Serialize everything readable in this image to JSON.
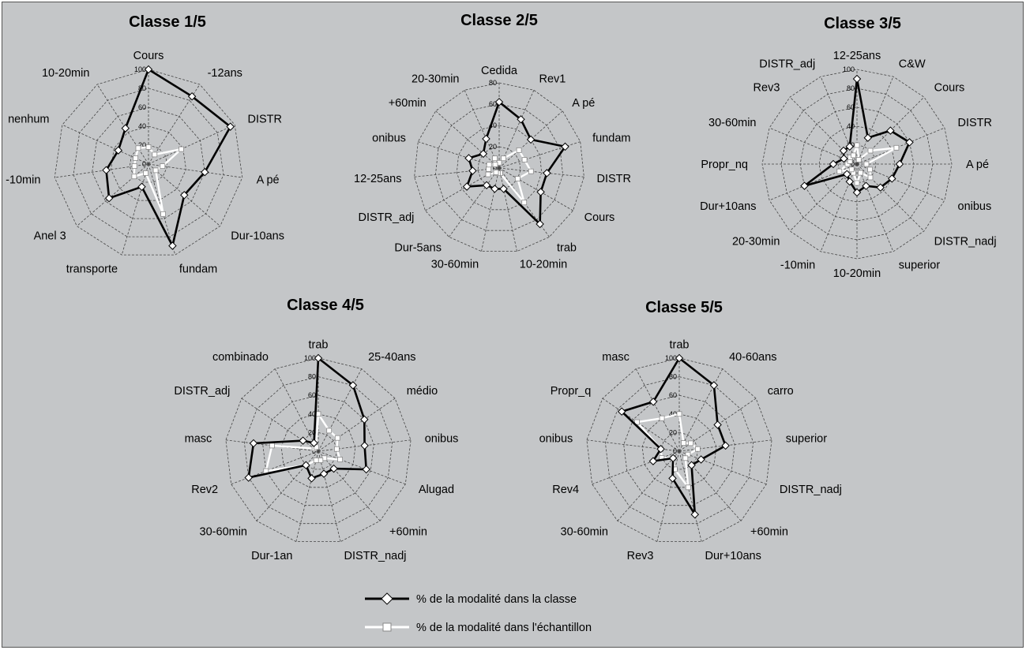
{
  "colors": {
    "background": "#c4c6c8",
    "class_series": "#000000",
    "sample_series": "#ffffff",
    "grid": "#444444"
  },
  "legend": {
    "class_label": "% de la modalité dans la classe",
    "sample_label": "% de la modalité dans l'échantillon"
  },
  "chart_data": [
    {
      "type": "radar",
      "title": "Classe 1/5",
      "ticks": [
        "0",
        "20",
        "40",
        "60",
        "80",
        "100"
      ],
      "rlim": [
        0,
        100
      ],
      "axes": [
        "Cours",
        "-12ans",
        "DISTR",
        "A pé",
        "Dur-10ans",
        "fundam",
        "transporte",
        "Anel 3",
        "-10min",
        "nenhum",
        "10-20min"
      ],
      "series": [
        {
          "name": "% de la modalité dans la classe",
          "values": [
            100,
            85,
            95,
            60,
            50,
            90,
            25,
            55,
            45,
            35,
            45
          ]
        },
        {
          "name": "% de la modalité dans l'échantillon",
          "values": [
            18,
            12,
            38,
            15,
            10,
            55,
            10,
            20,
            15,
            15,
            20
          ]
        }
      ]
    },
    {
      "type": "radar",
      "title": "Classe 2/5",
      "ticks": [
        "0",
        "20",
        "40",
        "60",
        "80"
      ],
      "rlim": [
        0,
        80
      ],
      "axes": [
        "Cedida",
        "Rev1",
        "A pé",
        "fundam",
        "DISTR",
        "Cours",
        "trab",
        "10-20min",
        "30-60min",
        "Dur-5ans",
        "DISTR_adj",
        "12-25ans",
        "onibus",
        "+60min",
        "20-30min"
      ],
      "series": [
        {
          "name": "% de la modalité dans la classe",
          "values": [
            62,
            50,
            40,
            65,
            45,
            45,
            65,
            20,
            20,
            20,
            35,
            25,
            30,
            20,
            30
          ]
        },
        {
          "name": "% de la modalité dans l'échantillon",
          "values": [
            5,
            10,
            25,
            25,
            30,
            20,
            40,
            5,
            5,
            5,
            12,
            10,
            10,
            5,
            10
          ]
        }
      ]
    },
    {
      "type": "radar",
      "title": "Classe 3/5",
      "ticks": [
        "0",
        "20",
        "40",
        "60",
        "80",
        "100"
      ],
      "rlim": [
        0,
        100
      ],
      "axes": [
        "12-25ans",
        "C&W",
        "Cours",
        "DISTR",
        "A pé",
        "onibus",
        "DISTR_nadj",
        "superior",
        "10-20min",
        "-10min",
        "20-30min",
        "Dur+10ans",
        "Propr_nq",
        "30-60min",
        "Rev3",
        "DISTR_adj"
      ],
      "series": [
        {
          "name": "% de la modalité dans la classe",
          "values": [
            90,
            30,
            50,
            60,
            45,
            40,
            35,
            25,
            30,
            20,
            15,
            60,
            25,
            15,
            20,
            20
          ]
        },
        {
          "name": "% de la modalité dans l'échantillon",
          "values": [
            20,
            5,
            20,
            45,
            10,
            15,
            20,
            10,
            20,
            10,
            8,
            20,
            10,
            8,
            10,
            10
          ]
        }
      ]
    },
    {
      "type": "radar",
      "title": "Classe 4/5",
      "ticks": [
        "0",
        "20",
        "40",
        "60",
        "80",
        "100"
      ],
      "rlim": [
        0,
        100
      ],
      "axes": [
        "trab",
        "25-40ans",
        "médio",
        "onibus",
        "Alugad",
        "+60min",
        "DISTR_nadj",
        "Dur-1an",
        "30-60min",
        "Rev2",
        "masc",
        "DISTR_adj",
        "combinado"
      ],
      "series": [
        {
          "name": "% de la modalité dans la classe",
          "values": [
            100,
            80,
            60,
            50,
            55,
            25,
            25,
            30,
            20,
            80,
            70,
            20,
            10
          ]
        },
        {
          "name": "% de la modalité dans l'échantillon",
          "values": [
            40,
            25,
            25,
            20,
            25,
            10,
            10,
            10,
            20,
            60,
            50,
            5,
            5
          ]
        }
      ]
    },
    {
      "type": "radar",
      "title": "Classe 5/5",
      "ticks": [
        "0",
        "20",
        "40",
        "60",
        "80",
        "100"
      ],
      "rlim": [
        0,
        100
      ],
      "axes": [
        "trab",
        "40-60ans",
        "carro",
        "superior",
        "DISTR_nadj",
        "+60min",
        "Dur+10ans",
        "Rev3",
        "30-60min",
        "Rev4",
        "onibus",
        "Propr_q",
        "masc"
      ],
      "series": [
        {
          "name": "% de la modalité dans la classe",
          "values": [
            100,
            80,
            50,
            50,
            25,
            20,
            70,
            30,
            10,
            30,
            20,
            75,
            60
          ]
        },
        {
          "name": "% de la modalité dans l'échantillon",
          "values": [
            40,
            10,
            15,
            20,
            10,
            10,
            40,
            20,
            10,
            20,
            20,
            55,
            40
          ]
        }
      ]
    }
  ]
}
